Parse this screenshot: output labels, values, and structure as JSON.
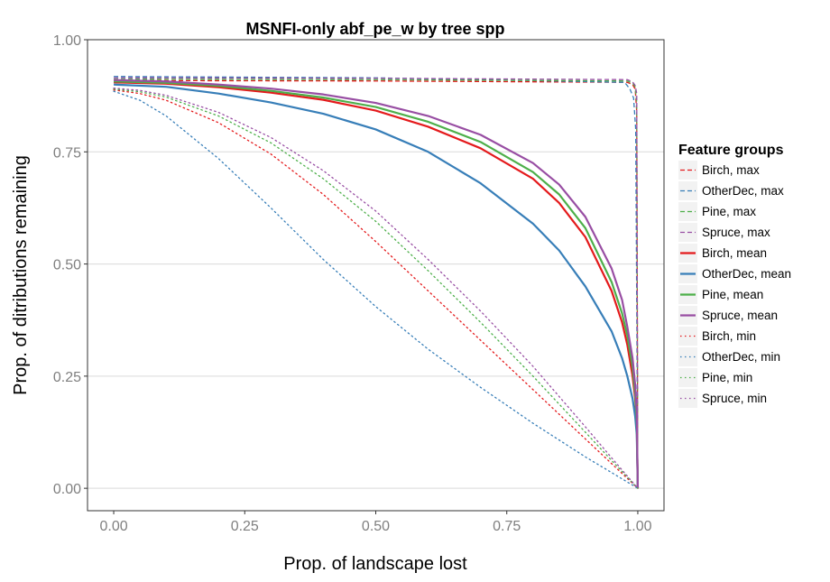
{
  "chart_data": {
    "type": "line",
    "title": "MSNFI-only abf_pe_w by tree spp",
    "xlabel": "Prop. of landscape lost",
    "ylabel": "Prop. of ditributions remaining",
    "xlim": [
      -0.05,
      1.05
    ],
    "ylim": [
      -0.05,
      1.0
    ],
    "xticks": [
      0.0,
      0.25,
      0.5,
      0.75,
      1.0
    ],
    "xtick_labels": [
      "0.00",
      "0.25",
      "0.50",
      "0.75",
      "1.00"
    ],
    "yticks": [
      0.0,
      0.25,
      0.5,
      0.75,
      1.0
    ],
    "ytick_labels": [
      "0.00",
      "0.25",
      "0.50",
      "0.75",
      "1.00"
    ],
    "grid": "horizontal",
    "legend": {
      "title": "Feature groups",
      "position": "right"
    },
    "series": [
      {
        "name": "Birch, max",
        "color": "#e41a1c",
        "dash": "dashed",
        "points": [
          [
            0,
            0.909
          ],
          [
            0.5,
            0.908
          ],
          [
            0.98,
            0.905
          ],
          [
            0.99,
            0.9
          ],
          [
            0.995,
            0.89
          ],
          [
            0.998,
            0.84
          ],
          [
            1.0,
            0.0
          ]
        ]
      },
      {
        "name": "OtherDec, max",
        "color": "#377eb8",
        "dash": "dashed",
        "points": [
          [
            0,
            0.918
          ],
          [
            0.5,
            0.915
          ],
          [
            0.975,
            0.905
          ],
          [
            0.985,
            0.89
          ],
          [
            0.992,
            0.87
          ],
          [
            0.996,
            0.8
          ],
          [
            1.0,
            0.0
          ]
        ]
      },
      {
        "name": "Pine, max",
        "color": "#4daf4a",
        "dash": "dashed",
        "points": [
          [
            0,
            0.912
          ],
          [
            0.5,
            0.911
          ],
          [
            0.98,
            0.908
          ],
          [
            0.99,
            0.903
          ],
          [
            0.995,
            0.895
          ],
          [
            0.998,
            0.86
          ],
          [
            1.0,
            0.0
          ]
        ]
      },
      {
        "name": "Spruce, max",
        "color": "#984ea3",
        "dash": "dashed",
        "points": [
          [
            0,
            0.915
          ],
          [
            0.5,
            0.914
          ],
          [
            0.98,
            0.911
          ],
          [
            0.99,
            0.906
          ],
          [
            0.995,
            0.898
          ],
          [
            0.998,
            0.88
          ],
          [
            1.0,
            0.0
          ]
        ]
      },
      {
        "name": "Birch, mean",
        "color": "#e41a1c",
        "dash": "solid",
        "points": [
          [
            0,
            0.905
          ],
          [
            0.1,
            0.902
          ],
          [
            0.2,
            0.894
          ],
          [
            0.3,
            0.882
          ],
          [
            0.4,
            0.866
          ],
          [
            0.5,
            0.842
          ],
          [
            0.6,
            0.806
          ],
          [
            0.7,
            0.758
          ],
          [
            0.8,
            0.69
          ],
          [
            0.85,
            0.636
          ],
          [
            0.9,
            0.56
          ],
          [
            0.95,
            0.44
          ],
          [
            0.97,
            0.37
          ],
          [
            0.98,
            0.32
          ],
          [
            0.99,
            0.25
          ],
          [
            0.995,
            0.2
          ],
          [
            0.998,
            0.14
          ],
          [
            1.0,
            0.0
          ]
        ]
      },
      {
        "name": "OtherDec, mean",
        "color": "#377eb8",
        "dash": "solid",
        "points": [
          [
            0,
            0.9
          ],
          [
            0.1,
            0.895
          ],
          [
            0.2,
            0.88
          ],
          [
            0.3,
            0.86
          ],
          [
            0.4,
            0.835
          ],
          [
            0.5,
            0.8
          ],
          [
            0.6,
            0.75
          ],
          [
            0.7,
            0.68
          ],
          [
            0.8,
            0.59
          ],
          [
            0.85,
            0.53
          ],
          [
            0.9,
            0.45
          ],
          [
            0.95,
            0.35
          ],
          [
            0.97,
            0.29
          ],
          [
            0.98,
            0.25
          ],
          [
            0.99,
            0.2
          ],
          [
            0.995,
            0.16
          ],
          [
            0.998,
            0.12
          ],
          [
            1.0,
            0.0
          ]
        ]
      },
      {
        "name": "Pine, mean",
        "color": "#4daf4a",
        "dash": "solid",
        "points": [
          [
            0,
            0.907
          ],
          [
            0.1,
            0.904
          ],
          [
            0.2,
            0.897
          ],
          [
            0.3,
            0.886
          ],
          [
            0.4,
            0.871
          ],
          [
            0.5,
            0.85
          ],
          [
            0.6,
            0.817
          ],
          [
            0.7,
            0.772
          ],
          [
            0.8,
            0.705
          ],
          [
            0.85,
            0.655
          ],
          [
            0.9,
            0.58
          ],
          [
            0.95,
            0.46
          ],
          [
            0.97,
            0.39
          ],
          [
            0.98,
            0.34
          ],
          [
            0.99,
            0.27
          ],
          [
            0.995,
            0.21
          ],
          [
            0.998,
            0.15
          ],
          [
            1.0,
            0.0
          ]
        ]
      },
      {
        "name": "Spruce, mean",
        "color": "#984ea3",
        "dash": "solid",
        "points": [
          [
            0,
            0.91
          ],
          [
            0.1,
            0.907
          ],
          [
            0.2,
            0.9
          ],
          [
            0.3,
            0.891
          ],
          [
            0.4,
            0.878
          ],
          [
            0.5,
            0.859
          ],
          [
            0.6,
            0.83
          ],
          [
            0.7,
            0.788
          ],
          [
            0.8,
            0.725
          ],
          [
            0.85,
            0.677
          ],
          [
            0.9,
            0.605
          ],
          [
            0.95,
            0.49
          ],
          [
            0.97,
            0.42
          ],
          [
            0.98,
            0.36
          ],
          [
            0.99,
            0.29
          ],
          [
            0.995,
            0.23
          ],
          [
            0.998,
            0.17
          ],
          [
            1.0,
            0.0
          ]
        ]
      },
      {
        "name": "Birch, min",
        "color": "#e41a1c",
        "dash": "dotted",
        "points": [
          [
            0,
            0.888
          ],
          [
            0.05,
            0.88
          ],
          [
            0.1,
            0.865
          ],
          [
            0.2,
            0.815
          ],
          [
            0.3,
            0.745
          ],
          [
            0.4,
            0.655
          ],
          [
            0.5,
            0.55
          ],
          [
            0.6,
            0.44
          ],
          [
            0.7,
            0.33
          ],
          [
            0.8,
            0.22
          ],
          [
            0.9,
            0.11
          ],
          [
            0.95,
            0.055
          ],
          [
            1.0,
            0.0
          ]
        ]
      },
      {
        "name": "OtherDec, min",
        "color": "#377eb8",
        "dash": "dotted",
        "points": [
          [
            0,
            0.885
          ],
          [
            0.05,
            0.865
          ],
          [
            0.1,
            0.83
          ],
          [
            0.2,
            0.735
          ],
          [
            0.3,
            0.625
          ],
          [
            0.4,
            0.51
          ],
          [
            0.5,
            0.405
          ],
          [
            0.6,
            0.31
          ],
          [
            0.7,
            0.225
          ],
          [
            0.8,
            0.145
          ],
          [
            0.9,
            0.07
          ],
          [
            0.95,
            0.035
          ],
          [
            1.0,
            0.0
          ]
        ]
      },
      {
        "name": "Pine, min",
        "color": "#4daf4a",
        "dash": "dotted",
        "points": [
          [
            0,
            0.89
          ],
          [
            0.05,
            0.884
          ],
          [
            0.1,
            0.872
          ],
          [
            0.2,
            0.83
          ],
          [
            0.3,
            0.77
          ],
          [
            0.4,
            0.69
          ],
          [
            0.5,
            0.595
          ],
          [
            0.6,
            0.485
          ],
          [
            0.7,
            0.37
          ],
          [
            0.8,
            0.25
          ],
          [
            0.9,
            0.125
          ],
          [
            0.95,
            0.062
          ],
          [
            1.0,
            0.0
          ]
        ]
      },
      {
        "name": "Spruce, min",
        "color": "#984ea3",
        "dash": "dotted",
        "points": [
          [
            0,
            0.892
          ],
          [
            0.05,
            0.887
          ],
          [
            0.1,
            0.876
          ],
          [
            0.2,
            0.838
          ],
          [
            0.3,
            0.782
          ],
          [
            0.4,
            0.708
          ],
          [
            0.5,
            0.618
          ],
          [
            0.6,
            0.51
          ],
          [
            0.7,
            0.395
          ],
          [
            0.8,
            0.272
          ],
          [
            0.9,
            0.137
          ],
          [
            0.95,
            0.068
          ],
          [
            1.0,
            0.0
          ]
        ]
      }
    ]
  }
}
